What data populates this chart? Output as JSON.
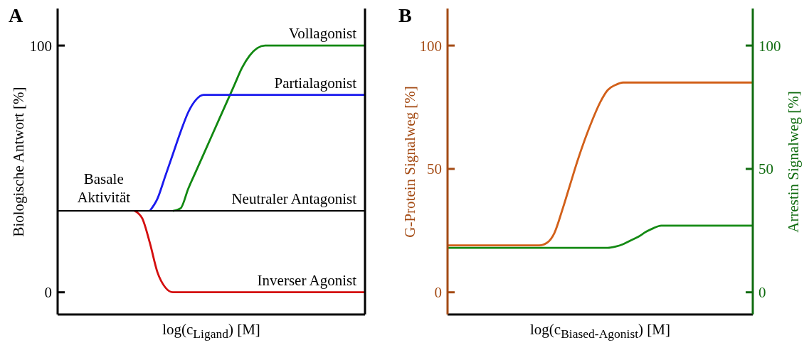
{
  "chart_data": [
    {
      "type": "line",
      "title": "A",
      "xlabel": "log(c$_{Ligand}$) [M]",
      "ylabel": "Biologische Antwort [%]",
      "categories": [
        null,
        null,
        null,
        null,
        null,
        null,
        null,
        null,
        null,
        null,
        null,
        null,
        null,
        null,
        null,
        null,
        null,
        null,
        null,
        null,
        null,
        null,
        null,
        null,
        null,
        null,
        null,
        null,
        null,
        null,
        null,
        null,
        null,
        null,
        null,
        null,
        null,
        null,
        null,
        null,
        null
      ],
      "ylim": [
        -9,
        115
      ],
      "yticks": [
        0,
        100
      ],
      "annotations": [
        {
          "text": "Basale Aktivität",
          "y": 33
        }
      ],
      "series": [
        {
          "name": "Vollagonist",
          "color": "#118811",
          "values": [
            null,
            null,
            null,
            null,
            null,
            null,
            null,
            null,
            null,
            null,
            null,
            null,
            null,
            null,
            null,
            33,
            34,
            42,
            49,
            56,
            63,
            70,
            77,
            84,
            91,
            96,
            99,
            100,
            100,
            100,
            100,
            100,
            100,
            100,
            100,
            100,
            100,
            100,
            100,
            100,
            100
          ]
        },
        {
          "name": "Partialagonist",
          "color": "#1a1aee",
          "values": [
            null,
            null,
            null,
            null,
            null,
            null,
            null,
            null,
            null,
            null,
            null,
            null,
            33,
            38,
            47,
            56,
            65,
            73,
            78,
            80,
            80,
            80,
            80,
            80,
            80,
            80,
            80,
            80,
            80,
            80,
            80,
            80,
            80,
            80,
            80,
            80,
            80,
            80,
            80,
            80,
            80
          ]
        },
        {
          "name": "Inverser Agonist",
          "color": "#d40f0f",
          "values": [
            null,
            null,
            null,
            null,
            null,
            null,
            null,
            null,
            null,
            null,
            33,
            30,
            20,
            8,
            2,
            0,
            0,
            0,
            0,
            0,
            0,
            0,
            0,
            0,
            0,
            0,
            0,
            0,
            0,
            0,
            0,
            0,
            0,
            0,
            0,
            0,
            0,
            0,
            0,
            0,
            0
          ]
        },
        {
          "name": "Neutraler Antagonist",
          "color": "#000000",
          "values": [
            33,
            33,
            33,
            33,
            33,
            33,
            33,
            33,
            33,
            33,
            33,
            33,
            33,
            33,
            33,
            33,
            33,
            33,
            33,
            33,
            33,
            33,
            33,
            33,
            33,
            33,
            33,
            33,
            33,
            33,
            33,
            33,
            33,
            33,
            33,
            33,
            33,
            33,
            33,
            33,
            33
          ]
        }
      ]
    },
    {
      "type": "line",
      "title": "B",
      "xlabel": "log(c$_{Biased-Agonist}$) [M]",
      "ylabel": "G-Protein Signalweg [%]",
      "y2label": "Arrestin Signalweg [%]",
      "categories": [
        null,
        null,
        null,
        null,
        null,
        null,
        null,
        null,
        null,
        null,
        null,
        null,
        null,
        null,
        null,
        null,
        null,
        null,
        null,
        null,
        null,
        null,
        null,
        null,
        null,
        null,
        null,
        null,
        null,
        null,
        null,
        null,
        null,
        null,
        null,
        null,
        null,
        null,
        null,
        null,
        null
      ],
      "ylim": [
        -9,
        115
      ],
      "yticks": [
        0,
        50,
        100
      ],
      "y2lim": [
        -9,
        115
      ],
      "y2ticks": [
        0,
        50,
        100
      ],
      "series": [
        {
          "color": "#d2601a",
          "values": [
            19,
            19,
            19,
            19,
            19,
            19,
            19,
            19,
            19,
            19,
            19,
            19,
            19,
            20,
            24,
            33,
            43,
            53,
            62,
            70,
            77,
            82,
            84,
            85,
            85,
            85,
            85,
            85,
            85,
            85,
            85,
            85,
            85,
            85,
            85,
            85,
            85,
            85,
            85,
            85,
            85
          ]
        },
        {
          "color": "#148a14",
          "axis": "y2",
          "values": [
            18,
            18,
            18,
            18,
            18,
            18,
            18,
            18,
            18,
            18,
            18,
            18,
            18,
            18,
            18,
            18,
            18,
            18,
            18,
            18,
            18,
            18,
            18.5,
            19.5,
            21,
            22.5,
            24.5,
            26,
            27,
            27,
            27,
            27,
            27,
            27,
            27,
            27,
            27,
            27,
            27,
            27,
            27
          ]
        }
      ]
    }
  ]
}
